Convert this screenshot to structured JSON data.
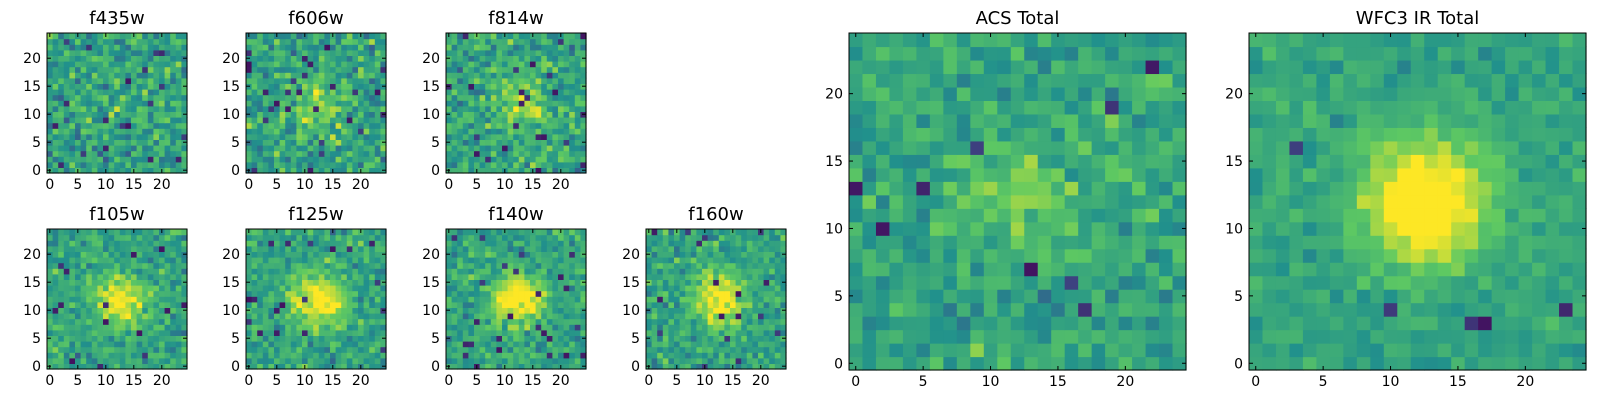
{
  "figure": {
    "colormap": "viridis",
    "colormap_stops": [
      "#440154",
      "#3b528b",
      "#21918c",
      "#5ec962",
      "#fde725"
    ],
    "tick_color": "#000000"
  },
  "chart_data": [
    {
      "type": "heatmap",
      "title": "f435w",
      "size": 25,
      "xticks": [
        0,
        5,
        10,
        15,
        20
      ],
      "yticks": [
        0,
        5,
        10,
        15,
        20
      ],
      "xlim": [
        0,
        24
      ],
      "ylim": [
        0,
        24
      ],
      "source_signal": 0.05,
      "noise": 0.22,
      "seed": 11,
      "dark_pixel_rate": 0.04
    },
    {
      "type": "heatmap",
      "title": "f606w",
      "size": 25,
      "xticks": [
        0,
        5,
        10,
        15,
        20
      ],
      "yticks": [
        0,
        5,
        10,
        15,
        20
      ],
      "xlim": [
        0,
        24
      ],
      "ylim": [
        0,
        24
      ],
      "source_signal": 0.25,
      "noise": 0.22,
      "seed": 23,
      "dark_pixel_rate": 0.04
    },
    {
      "type": "heatmap",
      "title": "f814w",
      "size": 25,
      "xticks": [
        0,
        5,
        10,
        15,
        20
      ],
      "yticks": [
        0,
        5,
        10,
        15,
        20
      ],
      "xlim": [
        0,
        24
      ],
      "ylim": [
        0,
        24
      ],
      "source_signal": 0.3,
      "noise": 0.22,
      "seed": 37,
      "dark_pixel_rate": 0.04
    },
    {
      "type": "heatmap",
      "title": "f105w",
      "size": 25,
      "xticks": [
        0,
        5,
        10,
        15,
        20
      ],
      "yticks": [
        0,
        5,
        10,
        15,
        20
      ],
      "xlim": [
        0,
        24
      ],
      "ylim": [
        0,
        24
      ],
      "source_signal": 0.45,
      "noise": 0.18,
      "seed": 41,
      "dark_pixel_rate": 0.03
    },
    {
      "type": "heatmap",
      "title": "f125w",
      "size": 25,
      "xticks": [
        0,
        5,
        10,
        15,
        20
      ],
      "yticks": [
        0,
        5,
        10,
        15,
        20
      ],
      "xlim": [
        0,
        24
      ],
      "ylim": [
        0,
        24
      ],
      "source_signal": 0.5,
      "noise": 0.18,
      "seed": 53,
      "dark_pixel_rate": 0.03
    },
    {
      "type": "heatmap",
      "title": "f140w",
      "size": 25,
      "xticks": [
        0,
        5,
        10,
        15,
        20
      ],
      "yticks": [
        0,
        5,
        10,
        15,
        20
      ],
      "xlim": [
        0,
        24
      ],
      "ylim": [
        0,
        24
      ],
      "source_signal": 0.5,
      "noise": 0.18,
      "seed": 67,
      "dark_pixel_rate": 0.03
    },
    {
      "type": "heatmap",
      "title": "f160w",
      "size": 25,
      "xticks": [
        0,
        5,
        10,
        15,
        20
      ],
      "yticks": [
        0,
        5,
        10,
        15,
        20
      ],
      "xlim": [
        0,
        24
      ],
      "ylim": [
        0,
        24
      ],
      "source_signal": 0.45,
      "noise": 0.18,
      "seed": 79,
      "dark_pixel_rate": 0.03
    },
    {
      "type": "heatmap",
      "title": "ACS Total",
      "size": 25,
      "xticks": [
        0,
        5,
        10,
        15,
        20
      ],
      "yticks": [
        0,
        5,
        10,
        15,
        20
      ],
      "xlim": [
        0,
        24
      ],
      "ylim": [
        0,
        24
      ],
      "source_signal": 0.2,
      "noise": 0.16,
      "seed": 97,
      "dark_pixel_rate": 0.015
    },
    {
      "type": "heatmap",
      "title": "WFC3 IR Total",
      "size": 25,
      "xticks": [
        0,
        5,
        10,
        15,
        20
      ],
      "yticks": [
        0,
        5,
        10,
        15,
        20
      ],
      "xlim": [
        0,
        24
      ],
      "ylim": [
        0,
        24
      ],
      "source_signal": 0.6,
      "noise": 0.1,
      "seed": 113,
      "dark_pixel_rate": 0.01
    }
  ]
}
